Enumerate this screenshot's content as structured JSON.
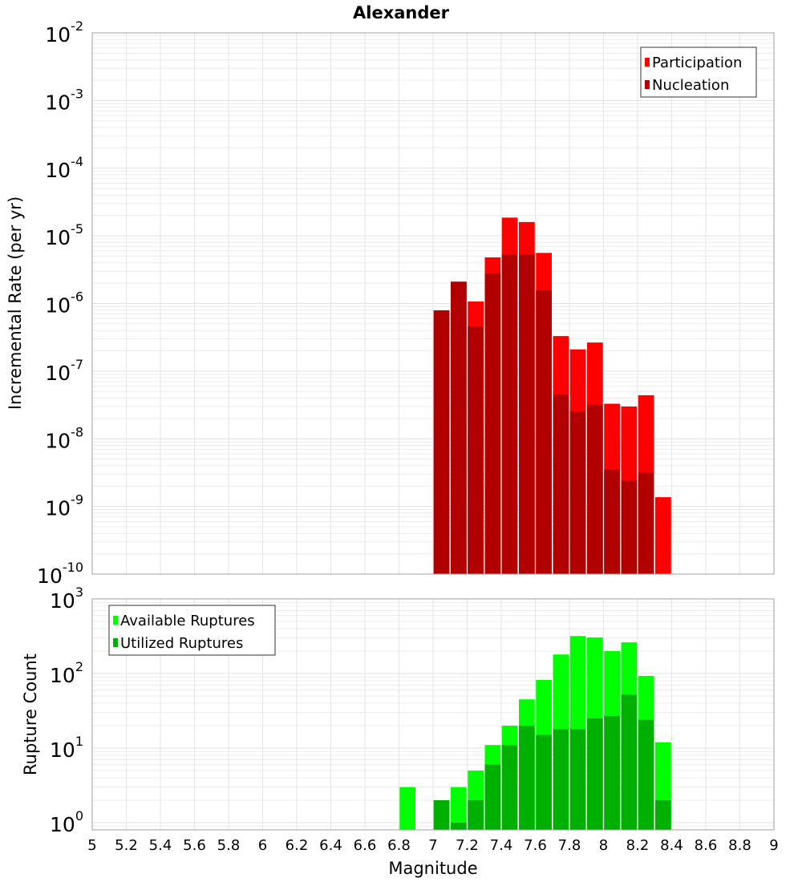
{
  "chart_data": [
    {
      "type": "bar",
      "title": "Alexander",
      "xlabel": "",
      "ylabel": "Incremental Rate (per yr)",
      "yscale": "log",
      "ylim": [
        1e-10,
        0.01
      ],
      "xlim": [
        5,
        9
      ],
      "grid": true,
      "legend_position": "top-right",
      "x": [
        7.05,
        7.15,
        7.25,
        7.35,
        7.45,
        7.55,
        7.65,
        7.75,
        7.85,
        7.95,
        8.05,
        8.15,
        8.25,
        8.35
      ],
      "series": [
        {
          "name": "Participation",
          "color": "#ff0000",
          "values": [
            7.9e-07,
            2.1e-06,
            1.07e-06,
            4.8e-06,
            1.86e-05,
            1.6e-05,
            5.6e-06,
            3.3e-07,
            2.1e-07,
            2.65e-07,
            3.3e-08,
            3e-08,
            4.4e-08,
            1.37e-09
          ]
        },
        {
          "name": "Nucleation",
          "color": "#b20000",
          "values": [
            7.9e-07,
            2.1e-06,
            4.6e-07,
            2.8e-06,
            5.3e-06,
            5.3e-06,
            1.56e-06,
            4.5e-08,
            2.55e-08,
            3.2e-08,
            3.5e-09,
            2.4e-09,
            3.2e-09,
            null
          ]
        }
      ],
      "ytick_exponents": [
        -10,
        -9,
        -8,
        -7,
        -6,
        -5,
        -4,
        -3,
        -2
      ]
    },
    {
      "type": "bar",
      "title": "",
      "xlabel": "Magnitude",
      "ylabel": "Rupture Count",
      "yscale": "log",
      "ylim": [
        0.8,
        1000
      ],
      "xlim": [
        5,
        9
      ],
      "grid": true,
      "legend_position": "top-left",
      "x": [
        6.85,
        7.05,
        7.15,
        7.25,
        7.35,
        7.45,
        7.55,
        7.65,
        7.75,
        7.85,
        7.95,
        8.05,
        8.15,
        8.25,
        8.35
      ],
      "series": [
        {
          "name": "Available Ruptures",
          "color": "#00ff00",
          "values": [
            3,
            2,
            3,
            5,
            11,
            20,
            45,
            82,
            180,
            318,
            305,
            200,
            262,
            93,
            12
          ]
        },
        {
          "name": "Utilized Ruptures",
          "color": "#00b000",
          "values": [
            0,
            2,
            1,
            2,
            6,
            11,
            20,
            15,
            18,
            18,
            25,
            27,
            52,
            24,
            2
          ]
        }
      ],
      "ytick_exponents": [
        0,
        1,
        2,
        3
      ],
      "xticks": [
        "5",
        "5.2",
        "5.4",
        "5.6",
        "5.8",
        "6",
        "6.2",
        "6.4",
        "6.6",
        "6.8",
        "7",
        "7.2",
        "7.4",
        "7.6",
        "7.8",
        "8",
        "8.2",
        "8.4",
        "8.6",
        "8.8",
        "9"
      ]
    }
  ]
}
